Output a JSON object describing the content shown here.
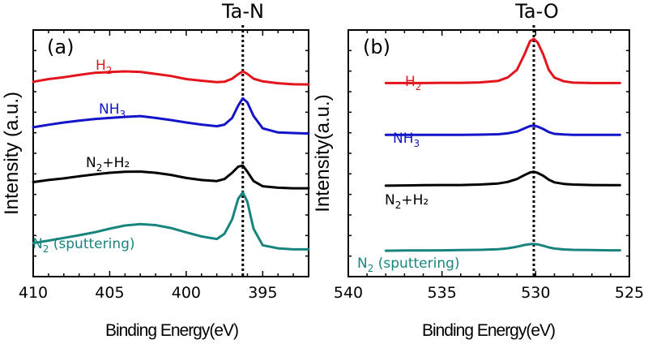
{
  "chart_data": [
    {
      "type": "line",
      "panel_label": "(a)",
      "peak_label": "Ta-N",
      "reference_x": 396.3,
      "xlabel": "Binding Energy(eV)",
      "ylabel": "Intensity (a.u.)",
      "xlim": [
        410,
        392
      ],
      "x_ticks": [
        410,
        405,
        400,
        395
      ],
      "grid": false,
      "series": [
        {
          "name": "H2",
          "label_base": "H",
          "label_sub": "2",
          "label_tail": "",
          "color": "#e3141c",
          "x": [
            410,
            409,
            408,
            407,
            406,
            405,
            404,
            403,
            402,
            401,
            400,
            399,
            398,
            397.5,
            397,
            396.6,
            396.3,
            396,
            395.6,
            395,
            394,
            393,
            392
          ],
          "y": [
            0.84,
            0.853,
            0.862,
            0.873,
            0.883,
            0.887,
            0.89,
            0.888,
            0.878,
            0.868,
            0.853,
            0.845,
            0.838,
            0.84,
            0.855,
            0.877,
            0.89,
            0.878,
            0.855,
            0.842,
            0.833,
            0.828,
            0.827
          ]
        },
        {
          "name": "NH3",
          "label_base": "NH",
          "label_sub": "3",
          "label_tail": "",
          "color": "#1414c8",
          "x": [
            410,
            409,
            408,
            407,
            406,
            405,
            404,
            403,
            402,
            401,
            400,
            399,
            398,
            397.5,
            397,
            396.6,
            396.3,
            396,
            395.6,
            395,
            394,
            393,
            392
          ],
          "y": [
            0.62,
            0.632,
            0.643,
            0.652,
            0.66,
            0.665,
            0.67,
            0.674,
            0.665,
            0.655,
            0.643,
            0.633,
            0.625,
            0.633,
            0.665,
            0.725,
            0.76,
            0.74,
            0.675,
            0.615,
            0.595,
            0.592,
            0.59
          ]
        },
        {
          "name": "N2+H2",
          "label_base": "N",
          "label_sub": "2",
          "label_tail": "+H₂",
          "color": "#000000",
          "x": [
            410,
            409,
            408,
            407,
            406,
            405,
            404,
            403,
            402,
            401,
            400,
            399,
            398,
            397.5,
            397,
            396.6,
            396.3,
            396,
            395.6,
            395,
            394,
            393,
            392
          ],
          "y": [
            0.355,
            0.365,
            0.373,
            0.383,
            0.392,
            0.4,
            0.405,
            0.406,
            0.4,
            0.39,
            0.375,
            0.365,
            0.36,
            0.37,
            0.4,
            0.43,
            0.435,
            0.405,
            0.36,
            0.335,
            0.328,
            0.325,
            0.325
          ]
        },
        {
          "name": "N2 (sputtering)",
          "label_base": "N",
          "label_sub": "2",
          "label_tail": " (sputtering)",
          "color": "#17857d",
          "x": [
            410,
            409,
            408,
            407,
            406,
            405,
            404,
            403,
            402,
            401,
            400,
            399,
            398,
            397.5,
            397,
            396.6,
            396.3,
            396,
            395.6,
            395,
            394,
            393,
            392
          ],
          "y": [
            0.06,
            0.072,
            0.085,
            0.098,
            0.112,
            0.13,
            0.145,
            0.152,
            0.147,
            0.133,
            0.112,
            0.092,
            0.08,
            0.105,
            0.175,
            0.275,
            0.305,
            0.26,
            0.13,
            0.05,
            0.035,
            0.03,
            0.03
          ]
        }
      ]
    },
    {
      "type": "line",
      "panel_label": "(b)",
      "peak_label": "Ta-O",
      "reference_x": 530.1,
      "xlabel": "Binding Energy(eV)",
      "ylabel": "Intensity(a.u.)",
      "xlim": [
        540,
        525
      ],
      "x_ticks": [
        540,
        535,
        530,
        525
      ],
      "grid": false,
      "series": [
        {
          "name": "H2",
          "label_base": "H",
          "label_sub": "2",
          "label_tail": "",
          "color": "#e3141c",
          "x": [
            538,
            537,
            536,
            535,
            534,
            533,
            532,
            531.5,
            531,
            530.6,
            530.3,
            530.1,
            529.9,
            529.6,
            529.3,
            529,
            528.5,
            528,
            527,
            526,
            525.5
          ],
          "y": [
            0.8,
            0.8,
            0.8,
            0.801,
            0.801,
            0.803,
            0.81,
            0.825,
            0.86,
            0.93,
            0.99,
            1.0,
            0.985,
            0.93,
            0.86,
            0.825,
            0.808,
            0.802,
            0.8,
            0.8,
            0.8
          ]
        },
        {
          "name": "NH3",
          "label_base": "NH",
          "label_sub": "3",
          "label_tail": "",
          "color": "#1414c8",
          "x": [
            538,
            537,
            536,
            535,
            534,
            533,
            532,
            531.5,
            531,
            530.6,
            530.3,
            530.1,
            529.9,
            529.6,
            529.3,
            529,
            528.5,
            528,
            527,
            526,
            525.5
          ],
          "y": [
            0.565,
            0.565,
            0.565,
            0.565,
            0.565,
            0.566,
            0.568,
            0.572,
            0.58,
            0.595,
            0.605,
            0.607,
            0.603,
            0.592,
            0.578,
            0.57,
            0.567,
            0.565,
            0.565,
            0.565,
            0.565
          ]
        },
        {
          "name": "N2+H2",
          "label_base": "N",
          "label_sub": "2",
          "label_tail": "+H₂",
          "color": "#000000",
          "x": [
            538,
            537,
            536,
            535,
            534,
            533,
            532,
            531.5,
            531,
            530.6,
            530.3,
            530.1,
            529.9,
            529.6,
            529.3,
            529,
            528.5,
            528,
            527,
            526,
            525.5
          ],
          "y": [
            0.335,
            0.336,
            0.337,
            0.338,
            0.338,
            0.34,
            0.345,
            0.352,
            0.365,
            0.383,
            0.395,
            0.398,
            0.393,
            0.38,
            0.362,
            0.35,
            0.343,
            0.34,
            0.338,
            0.337,
            0.337
          ]
        },
        {
          "name": "N2 (sputtering)",
          "label_base": "N",
          "label_sub": "2",
          "label_tail": " (sputtering)",
          "color": "#17857d",
          "x": [
            538,
            537,
            536,
            535,
            534,
            533,
            532,
            531.5,
            531,
            530.6,
            530.3,
            530.1,
            529.9,
            529.6,
            529.3,
            529,
            528.5,
            528,
            527,
            526,
            525.5
          ],
          "y": [
            0.04,
            0.041,
            0.041,
            0.042,
            0.043,
            0.044,
            0.047,
            0.051,
            0.058,
            0.066,
            0.07,
            0.071,
            0.069,
            0.063,
            0.055,
            0.05,
            0.046,
            0.044,
            0.043,
            0.042,
            0.042
          ]
        }
      ]
    }
  ]
}
